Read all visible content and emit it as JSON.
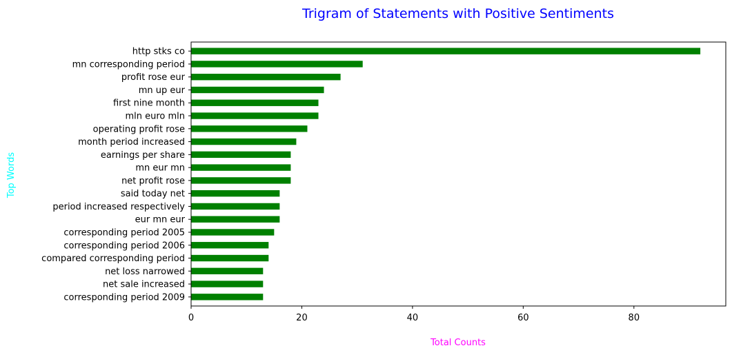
{
  "chart_data": {
    "type": "bar",
    "orientation": "horizontal",
    "title": "Trigram of Statements with Positive Sentiments",
    "xlabel": "Total Counts",
    "ylabel": "Top Words",
    "categories": [
      "http stks co",
      "mn corresponding period",
      "profit rose eur",
      "mn up eur",
      "first nine month",
      "mln euro mln",
      "operating profit rose",
      "month period increased",
      "earnings per share",
      "mn eur mn",
      "net profit rose",
      "said today net",
      "period increased respectively",
      "eur mn eur",
      "corresponding period 2005",
      "corresponding period 2006",
      "compared corresponding period",
      "net loss narrowed",
      "net sale increased",
      "corresponding period 2009"
    ],
    "values": [
      92,
      31,
      27,
      24,
      23,
      23,
      21,
      19,
      18,
      18,
      18,
      16,
      16,
      16,
      15,
      14,
      14,
      13,
      13,
      13
    ],
    "xlim": [
      0,
      96.6
    ],
    "xticks": [
      0,
      20,
      40,
      60,
      80
    ],
    "grid": false,
    "legend": "none",
    "colors": {
      "bar": "#008000",
      "title": "#0000ff",
      "xlabel": "#ff00ff",
      "ylabel": "#00ffff"
    }
  }
}
